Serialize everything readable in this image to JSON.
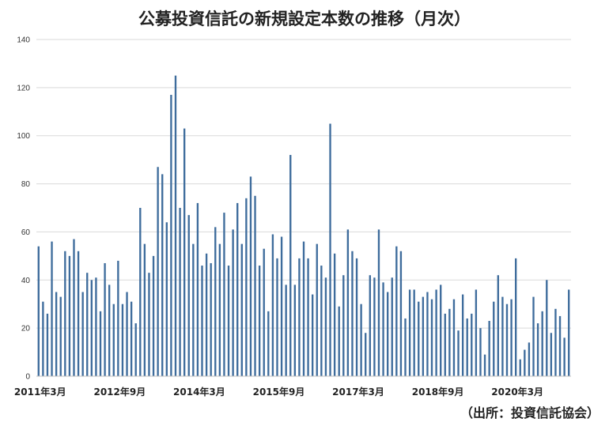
{
  "chart_data": {
    "type": "bar",
    "title": "公募投資信託の新規設定本数の推移（月次）",
    "source": "（出所：投資信託協会）",
    "ylim": [
      0,
      140
    ],
    "yticks": [
      0,
      20,
      40,
      60,
      80,
      100,
      120,
      140
    ],
    "grid": true,
    "legend": "none",
    "color": "#3E6C9C",
    "x_tick_labels": [
      {
        "index": 0,
        "label": "2011年3月"
      },
      {
        "index": 18,
        "label": "2012年9月"
      },
      {
        "index": 36,
        "label": "2014年3月"
      },
      {
        "index": 54,
        "label": "2015年9月"
      },
      {
        "index": 72,
        "label": "2017年3月"
      },
      {
        "index": 90,
        "label": "2018年9月"
      },
      {
        "index": 108,
        "label": "2020年3月"
      }
    ],
    "values": [
      54,
      31,
      26,
      56,
      35,
      33,
      52,
      50,
      57,
      52,
      35,
      43,
      40,
      41,
      27,
      47,
      38,
      30,
      48,
      30,
      35,
      31,
      22,
      70,
      55,
      43,
      50,
      87,
      84,
      64,
      117,
      125,
      70,
      103,
      67,
      55,
      72,
      46,
      51,
      47,
      62,
      55,
      68,
      46,
      61,
      72,
      55,
      74,
      83,
      75,
      46,
      53,
      27,
      59,
      49,
      58,
      38,
      92,
      38,
      49,
      56,
      49,
      34,
      55,
      46,
      41,
      105,
      51,
      29,
      42,
      61,
      52,
      49,
      30,
      18,
      42,
      41,
      61,
      39,
      35,
      41,
      54,
      52,
      24,
      36,
      36,
      31,
      33,
      35,
      32,
      36,
      38,
      26,
      28,
      32,
      19,
      34,
      24,
      26,
      36,
      20,
      9,
      23,
      31,
      42,
      33,
      30,
      32,
      49,
      7,
      11,
      14,
      33,
      22,
      27,
      40,
      18,
      28,
      25,
      16,
      36
    ]
  }
}
